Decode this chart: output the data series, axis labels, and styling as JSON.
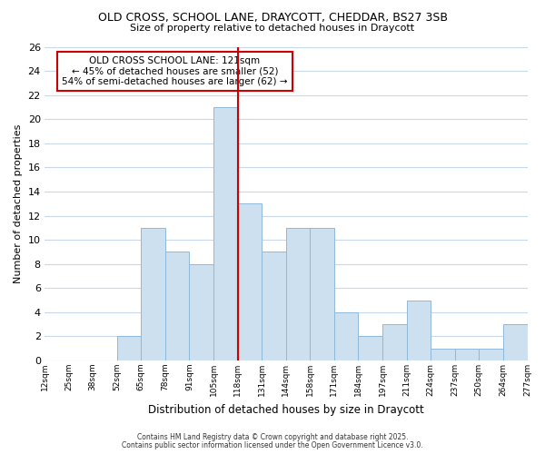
{
  "title": "OLD CROSS, SCHOOL LANE, DRAYCOTT, CHEDDAR, BS27 3SB",
  "subtitle": "Size of property relative to detached houses in Draycott",
  "xlabel": "Distribution of detached houses by size in Draycott",
  "ylabel": "Number of detached properties",
  "bar_color": "#cce0f0",
  "bar_edge_color": "#90b8d8",
  "grid_color": "#c8d8e8",
  "background_color": "#ffffff",
  "plot_bg_color": "#ffffff",
  "bins": [
    "12sqm",
    "25sqm",
    "38sqm",
    "52sqm",
    "65sqm",
    "78sqm",
    "91sqm",
    "105sqm",
    "118sqm",
    "131sqm",
    "144sqm",
    "158sqm",
    "171sqm",
    "184sqm",
    "197sqm",
    "211sqm",
    "224sqm",
    "237sqm",
    "250sqm",
    "264sqm",
    "277sqm"
  ],
  "values": [
    0,
    0,
    0,
    2,
    11,
    9,
    8,
    21,
    13,
    9,
    11,
    11,
    4,
    2,
    3,
    5,
    1,
    1,
    1,
    3
  ],
  "ylim": [
    0,
    26
  ],
  "yticks": [
    0,
    2,
    4,
    6,
    8,
    10,
    12,
    14,
    16,
    18,
    20,
    22,
    24,
    26
  ],
  "vline_color": "#cc0000",
  "annotation_title": "OLD CROSS SCHOOL LANE: 121sqm",
  "annotation_line1": "← 45% of detached houses are smaller (52)",
  "annotation_line2": "54% of semi-detached houses are larger (62) →",
  "annotation_box_color": "#ffffff",
  "annotation_box_edge": "#cc0000",
  "footnote1": "Contains HM Land Registry data © Crown copyright and database right 2025.",
  "footnote2": "Contains public sector information licensed under the Open Government Licence v3.0."
}
